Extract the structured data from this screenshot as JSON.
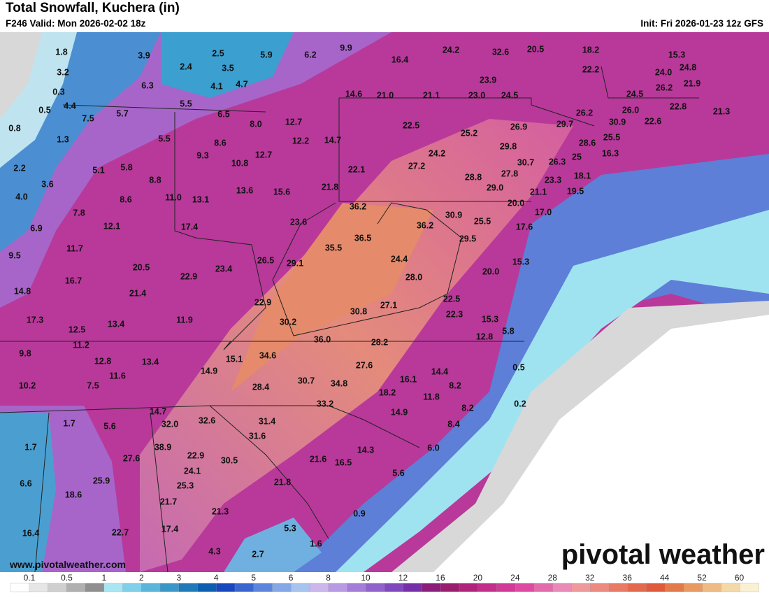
{
  "header": {
    "title": "Total Snowfall, Kuchera (in)",
    "valid": "F246 Valid: Mon 2026-02-02 18z",
    "init": "Init: Fri 2026-01-23 12z GFS"
  },
  "map": {
    "labels": [
      "1.8",
      "3.9",
      "2.5",
      "5.9",
      "6.2",
      "9.9",
      "3.2",
      "2.4",
      "3.5",
      "0.3",
      "6.3",
      "4.1",
      "4.7",
      "16.4",
      "24.2",
      "32.6",
      "20.5",
      "18.2",
      "15.3",
      "22.2",
      "24.0",
      "24.8",
      "23.9",
      "26.2",
      "21.9",
      "14.6",
      "21.0",
      "21.1",
      "23.0",
      "24.5",
      "24.5",
      "22.8",
      "0.5",
      "4.4",
      "5.7",
      "5.5",
      "6.5",
      "7.5",
      "26.0",
      "26.2",
      "21.3",
      "0.8",
      "8.0",
      "12.7",
      "22.5",
      "25.2",
      "26.9",
      "29.7",
      "30.9",
      "22.6",
      "1.3",
      "5.5",
      "8.6",
      "12.2",
      "14.7",
      "29.8",
      "25.5",
      "28.6",
      "16.3",
      "9.3",
      "12.7",
      "10.8",
      "24.2",
      "30.7",
      "26.3",
      "25",
      "2.2",
      "5.1",
      "5.8",
      "22.1",
      "27.2",
      "28.8",
      "27.8",
      "18.1",
      "8.8",
      "3.6",
      "13.6",
      "15.6",
      "21.8",
      "29.0",
      "23.3",
      "19.5",
      "21.1",
      "4.0",
      "11.0",
      "13.1",
      "8.6",
      "36.2",
      "20.0",
      "17.0",
      "7.8",
      "30.9",
      "25.5",
      "23.6",
      "36.2",
      "17.6",
      "6.9",
      "12.1",
      "17.4",
      "36.5",
      "29.5",
      "35.5",
      "11.7",
      "9.5",
      "26.5",
      "29.1",
      "24.4",
      "15.3",
      "20.5",
      "23.4",
      "28.0",
      "20.0",
      "16.7",
      "22.9",
      "14.8",
      "21.4",
      "22.5",
      "27.1",
      "22.9",
      "30.8",
      "22.3",
      "17.3",
      "13.4",
      "11.9",
      "30.2",
      "15.3",
      "5.8",
      "12.5",
      "36.0",
      "28.2",
      "12.8",
      "11.2",
      "9.8",
      "15.1",
      "34.6",
      "27.6",
      "12.8",
      "13.4",
      "14.9",
      "14.4",
      "0.5",
      "11.6",
      "16.1",
      "30.7",
      "34.8",
      "10.2",
      "7.5",
      "28.4",
      "8.2",
      "18.2",
      "11.8",
      "0.2",
      "33.2",
      "8.2",
      "14.7",
      "14.9",
      "1.7",
      "5.6",
      "32.0",
      "32.6",
      "31.4",
      "8.4",
      "31.6",
      "1.7",
      "38.9",
      "14.3",
      "6.0",
      "27.6",
      "22.9",
      "30.5",
      "21.6",
      "16.5",
      "24.1",
      "5.6",
      "25.9",
      "6.6",
      "25.3",
      "21.8",
      "18.6",
      "21.7",
      "21.3",
      "0.9",
      "5.3",
      "16.4",
      "22.7",
      "17.4",
      "1.6",
      "4.3",
      "2.7"
    ]
  },
  "colorbar": {
    "ticks": [
      0.1,
      0.5,
      1,
      2,
      3,
      4,
      5,
      6,
      8,
      10,
      12,
      16,
      20,
      24,
      28,
      32,
      36,
      44,
      52,
      60
    ]
  },
  "footer": {
    "website": "www.pivotalweather.com",
    "logo": "pivotal weather"
  }
}
